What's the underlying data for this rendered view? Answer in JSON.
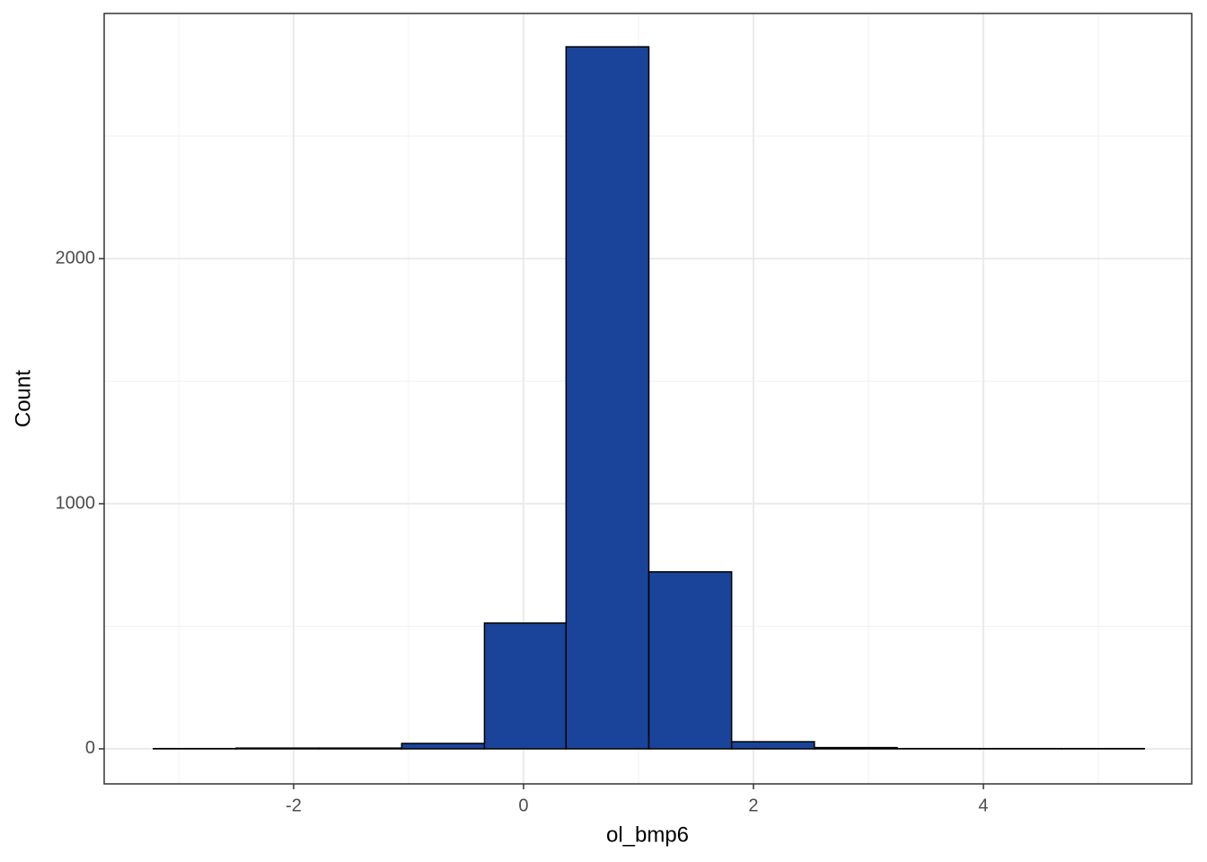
{
  "chart_data": {
    "type": "histogram",
    "x_label": "ol_bmp6",
    "y_label": "Count",
    "bins": [
      -3.22,
      -2.5,
      -1.78,
      -1.06,
      -0.34,
      0.37,
      1.09,
      1.81,
      2.53,
      3.25,
      3.97,
      4.68,
      5.4
    ],
    "values": [
      1,
      3,
      3,
      22,
      513,
      2864,
      722,
      29,
      5,
      1,
      1,
      1
    ],
    "color": "#1a4499",
    "xlim": [
      -3.648,
      5.8125
    ],
    "xticks": [
      -2,
      0,
      2,
      4
    ],
    "x_minor_ticks": [
      -3,
      -1,
      1,
      3,
      5
    ],
    "ylim": [
      -143,
      3000
    ],
    "yticks": [
      0,
      1000,
      2000
    ],
    "y_minor_ticks": [
      500,
      1500,
      2500
    ],
    "grid": true
  }
}
